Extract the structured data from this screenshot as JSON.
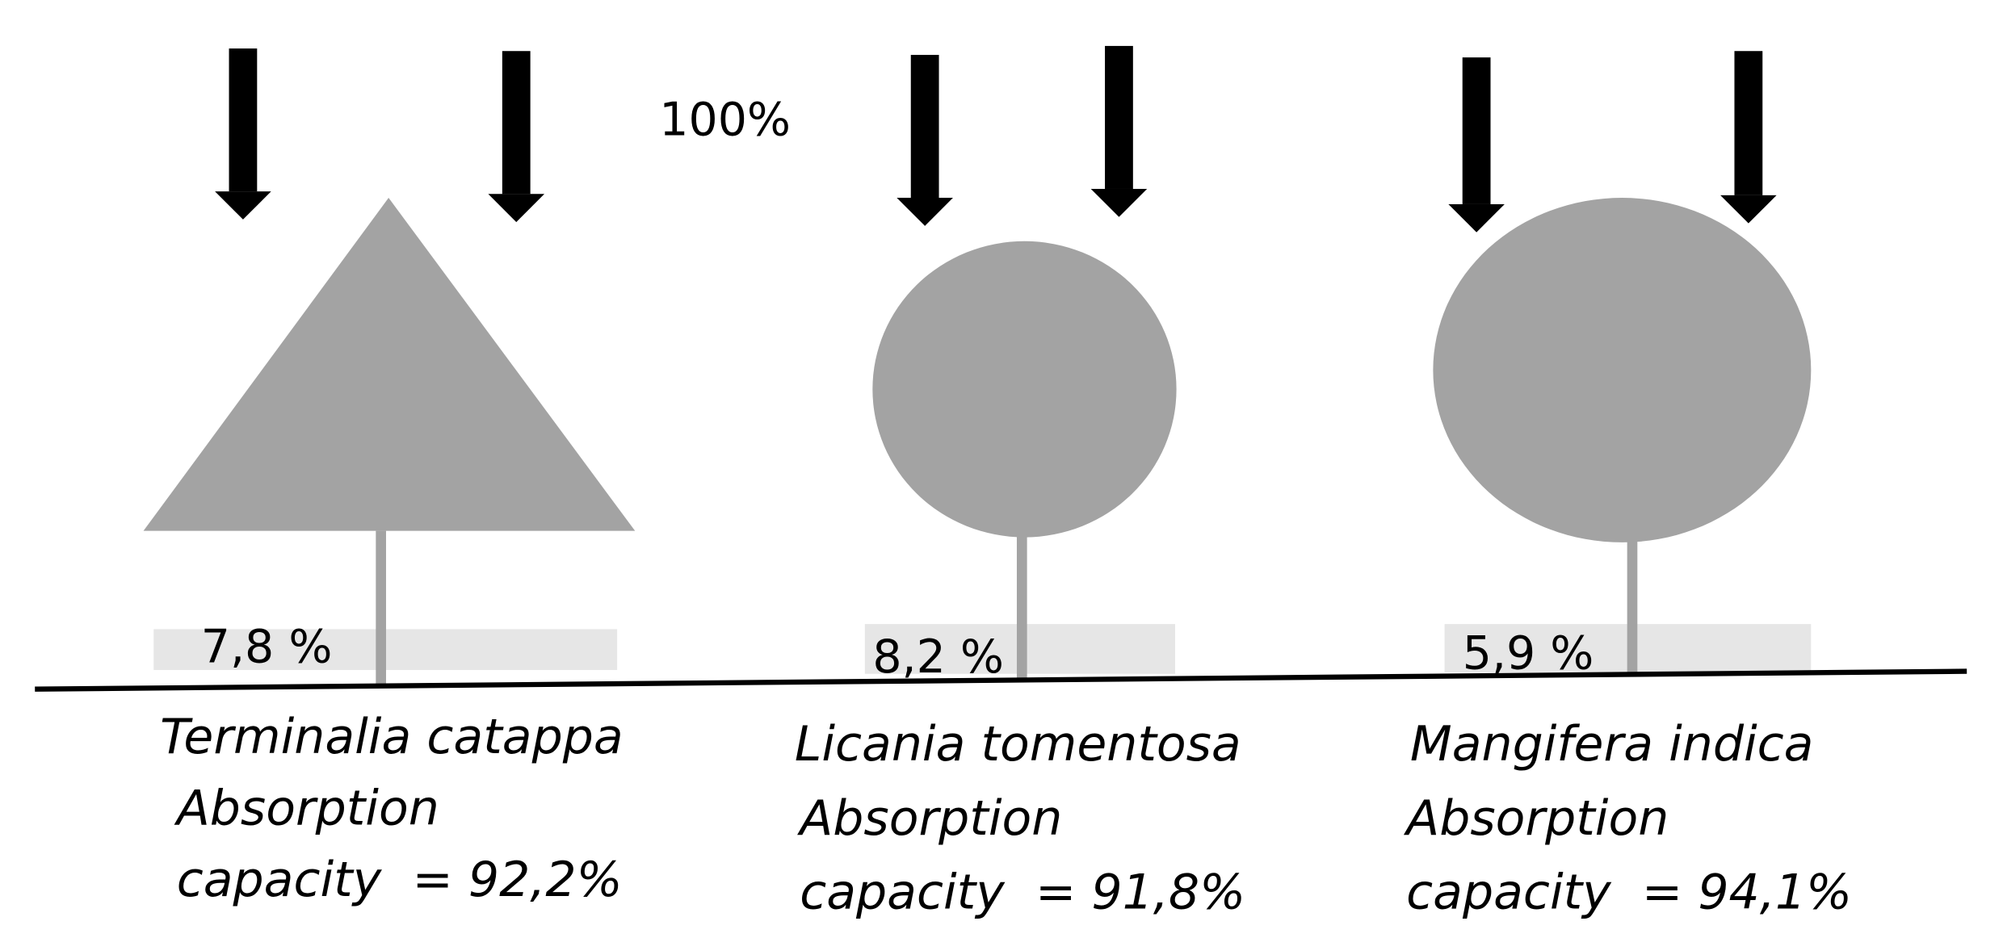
{
  "incident_label": "100%",
  "trees": [
    {
      "species": "Terminalia catappa",
      "transmitted": "7,8 %",
      "absorption_label": "Absorption",
      "capacity": "capacity  = 92,2%"
    },
    {
      "species": "Licania tomentosa",
      "transmitted": "8,2 %",
      "absorption_label": "Absorption",
      "capacity": "capacity  = 91,8%"
    },
    {
      "species": "Mangifera indica",
      "transmitted": "5,9 %",
      "absorption_label": "Absorption",
      "capacity": "capacity  = 94,1%"
    }
  ]
}
